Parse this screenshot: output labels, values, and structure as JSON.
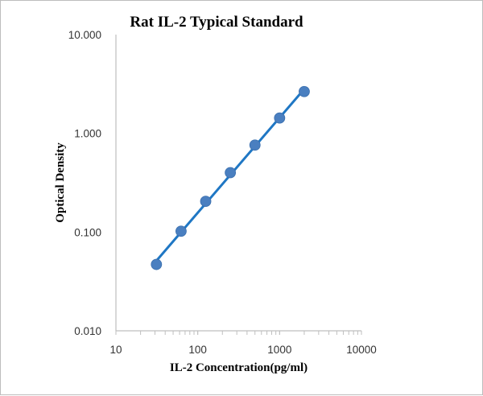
{
  "chart_data": {
    "type": "scatter",
    "title": "Rat IL-2 Typical Standard",
    "xlabel": "IL-2 Concentration(pg/ml)",
    "ylabel": "Optical Density",
    "x_scale": "log",
    "y_scale": "log",
    "xlim": [
      10,
      10000
    ],
    "ylim": [
      0.01,
      10
    ],
    "x_ticks": [
      10,
      100,
      1000,
      10000
    ],
    "x_tick_labels": [
      "10",
      "100",
      "1000",
      "10000"
    ],
    "y_ticks": [
      0.01,
      0.1,
      1,
      10
    ],
    "y_tick_labels": [
      "0.010",
      "0.100",
      "1.000",
      "10.000"
    ],
    "grid": false,
    "legend": "none",
    "series": [
      {
        "x": [
          31.25,
          62.5,
          125,
          250,
          500,
          1000,
          2000
        ],
        "y": [
          0.047,
          0.102,
          0.205,
          0.4,
          0.76,
          1.43,
          2.65
        ],
        "marker_color": "#4a7fc0",
        "line_color": "#1f77c4",
        "trendline": true
      }
    ]
  }
}
